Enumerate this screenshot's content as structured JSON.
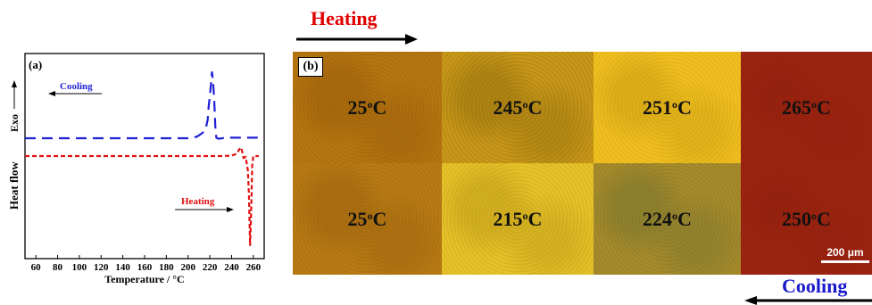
{
  "panel_a": {
    "label": "(a)",
    "ylabel": "Heat flow",
    "exo_label": "Exo",
    "xlabel": "Temperature / °C",
    "x_ticks": [
      "60",
      "80",
      "100",
      "120",
      "140",
      "160",
      "180",
      "200",
      "220",
      "240",
      "260"
    ],
    "cooling_label": "Cooling",
    "heating_label": "Heating",
    "colors": {
      "cooling": "#1f1fd6",
      "heating": "#e01010"
    }
  },
  "chart_data": {
    "type": "line",
    "xlabel": "Temperature / °C",
    "ylabel": "Heat flow",
    "xlim": [
      50,
      270
    ],
    "series": [
      {
        "name": "Cooling",
        "x": [
          50,
          190,
          200,
          208,
          213,
          216,
          218,
          219,
          220,
          221,
          222,
          223,
          224,
          225,
          226,
          228,
          235,
          250,
          265
        ],
        "y": [
          0.0,
          0.0,
          0.0,
          0.15,
          0.5,
          0.8,
          1.8,
          3.2,
          4.1,
          5.2,
          6.5,
          5.5,
          3.8,
          1.2,
          0.05,
          -0.05,
          0.05,
          0.05,
          0.05
        ]
      },
      {
        "name": "Heating",
        "x": [
          50,
          230,
          240,
          245,
          247,
          249,
          251,
          253,
          255,
          256,
          257,
          258,
          259,
          260,
          262,
          265
        ],
        "y": [
          0.0,
          0.0,
          0.05,
          0.25,
          0.7,
          0.9,
          -0.2,
          -0.1,
          -1.5,
          -4.0,
          -9.5,
          -6.0,
          -1.0,
          0.0,
          0.0,
          0.0
        ]
      }
    ]
  },
  "panel_b": {
    "label": "(b)",
    "heating_title": "Heating",
    "cooling_title": "Cooling",
    "scale_bar": "200 μm",
    "tiles": [
      {
        "t": "25",
        "unit": "C",
        "sup": "o",
        "color": "#b5750f",
        "tex": "#8a5208"
      },
      {
        "t": "245",
        "unit": "C",
        "sup": "o",
        "color": "#c89818",
        "tex": "#7a5a08"
      },
      {
        "t": "251",
        "unit": "C",
        "sup": "o",
        "color": "#f0c020",
        "tex": "#b88a08"
      },
      {
        "t": "265",
        "unit": "C",
        "sup": "o",
        "color": "#9b2410",
        "tex": "#8a1e0c"
      },
      {
        "t": "25",
        "unit": "C",
        "sup": "o",
        "color": "#b87a14",
        "tex": "#8c560a"
      },
      {
        "t": "215",
        "unit": "C",
        "sup": "o",
        "color": "#e6c22a",
        "tex": "#a8860c"
      },
      {
        "t": "224",
        "unit": "C",
        "sup": "o",
        "color": "#a88a2a",
        "tex": "#5e6a30"
      },
      {
        "t": "250",
        "unit": "C",
        "sup": "o",
        "color": "#9b2410",
        "tex": "#8a1e0c"
      }
    ]
  }
}
